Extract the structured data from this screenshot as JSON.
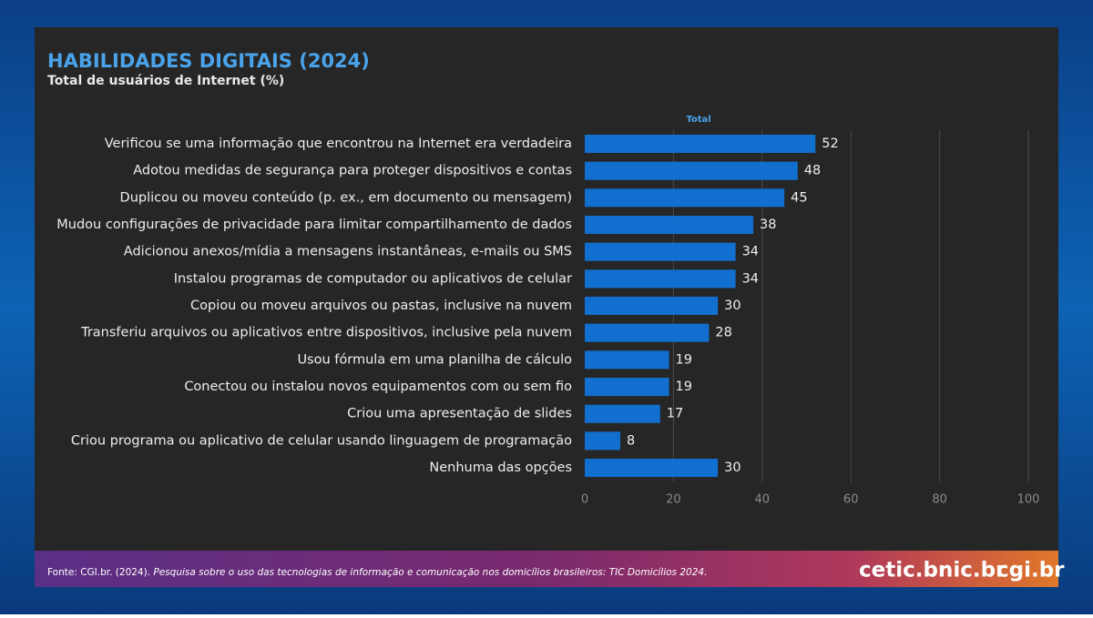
{
  "chart_data": {
    "type": "bar",
    "orientation": "horizontal",
    "title": "HABILIDADES DIGITAIS (2024)",
    "subtitle": "Total de usuários de Internet (%)",
    "categories": [
      "Verificou se uma informação que encontrou na Internet era verdadeira",
      "Adotou medidas de segurança para proteger dispositivos e contas",
      "Duplicou ou moveu conteúdo (p. ex., em documento ou mensagem)",
      "Mudou configurações de privacidade para limitar compartilhamento de dados",
      "Adicionou anexos/mídia a mensagens instantâneas, e-mails ou SMS",
      "Instalou programas de computador ou aplicativos de celular",
      "Copiou ou moveu arquivos ou pastas, inclusive na nuvem",
      "Transferiu arquivos ou aplicativos entre dispositivos, inclusive pela nuvem",
      "Usou fórmula em uma planilha de cálculo",
      "Conectou ou instalou novos equipamentos com ou sem fio",
      "Criou uma apresentação de slides",
      "Criou programa ou aplicativo de celular usando linguagem de programação",
      "Nenhuma das opções"
    ],
    "series": [
      {
        "name": "Total",
        "color": "#1170cf",
        "values": [
          52,
          48,
          45,
          38,
          34,
          34,
          30,
          28,
          19,
          19,
          17,
          8,
          30
        ]
      }
    ],
    "xlim": [
      0,
      100
    ],
    "xticks": [
      0,
      20,
      40,
      60,
      80,
      100
    ],
    "grid": true
  },
  "footer": {
    "source": "Fonte: CGI.br. (2024). ",
    "source_italic": "Pesquisa sobre o uso das tecnologias de informação e comunicação nos domicílios brasileiros: TIC Domicílios 2024.",
    "logos": [
      "cetic.br",
      "nic.br",
      "cgi.br"
    ]
  }
}
